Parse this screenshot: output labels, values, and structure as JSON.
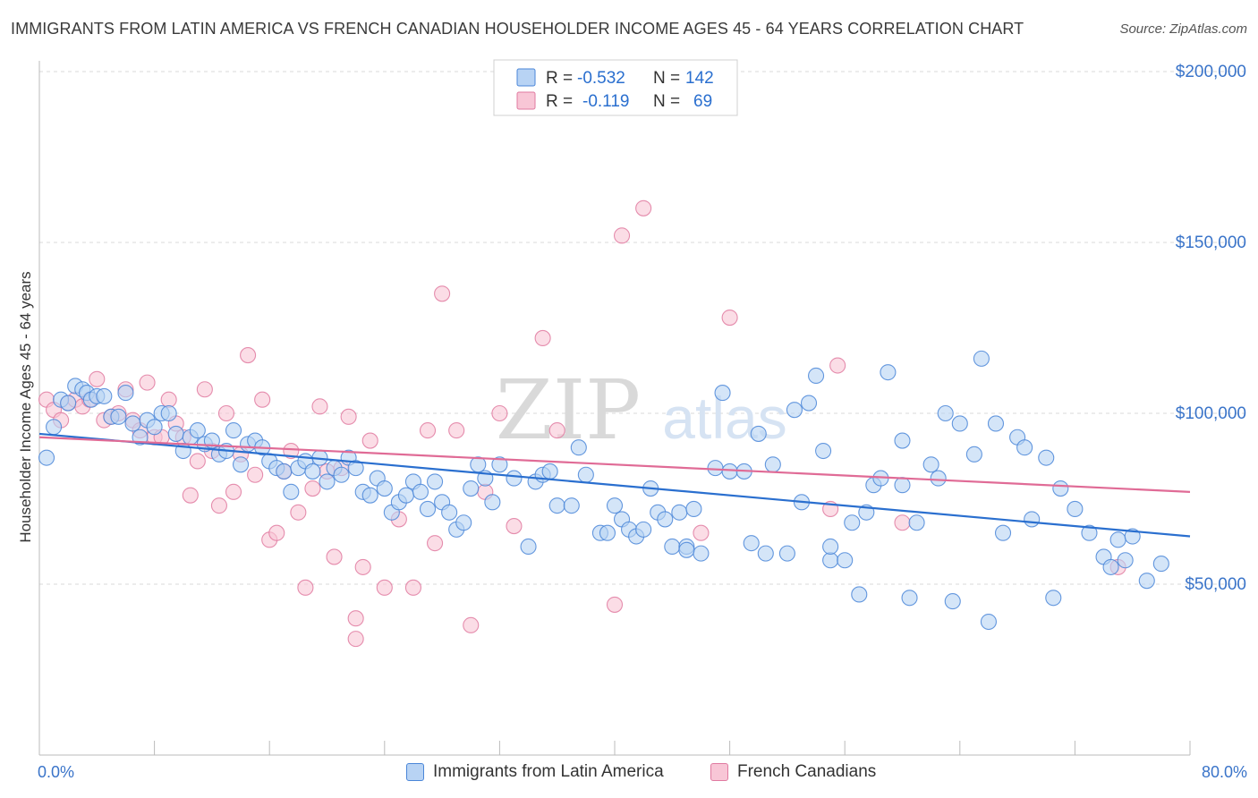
{
  "title": "IMMIGRANTS FROM LATIN AMERICA VS FRENCH CANADIAN HOUSEHOLDER INCOME AGES 45 - 64 YEARS CORRELATION CHART",
  "source": "Source: ZipAtlas.com",
  "watermark": {
    "zip": "ZIP",
    "atlas": "atlas"
  },
  "colors": {
    "blue": "#4a86d8",
    "blue_fill": "#b8d3f4",
    "blue_line": "#2a6fcf",
    "pink": "#e07aa0",
    "pink_fill": "#f8c6d6",
    "pink_line": "#e06b96",
    "axis_text": "#3a74c9",
    "grid": "#d8d8d8"
  },
  "legend_top": {
    "rows": [
      {
        "r_label": "R =",
        "r_value": "-0.532",
        "n_label": "N =",
        "n_value": "142"
      },
      {
        "r_label": "R =",
        "r_value": "-0.119",
        "n_label": "N =",
        "n_value": "69"
      }
    ]
  },
  "legend_bottom": [
    "Immigrants from Latin America",
    "French Canadians"
  ],
  "chart_data": {
    "type": "scatter",
    "title": "IMMIGRANTS FROM LATIN AMERICA VS FRENCH CANADIAN HOUSEHOLDER INCOME AGES 45 - 64 YEARS CORRELATION CHART",
    "xlabel": "",
    "ylabel": "Householder Income Ages 45 - 64 years",
    "xlim": [
      0,
      80
    ],
    "ylim": [
      0,
      205000
    ],
    "x_tick_labels": [
      "0.0%",
      "80.0%"
    ],
    "y_ticks": [
      50000,
      100000,
      150000,
      200000
    ],
    "y_tick_labels": [
      "$50,000",
      "$100,000",
      "$150,000",
      "$200,000"
    ],
    "grid": true,
    "series": [
      {
        "name": "Immigrants from Latin America",
        "r": -0.532,
        "n": 142,
        "trend": [
          [
            0,
            94000
          ],
          [
            80,
            64000
          ]
        ],
        "points": [
          [
            0.5,
            87000
          ],
          [
            1,
            96000
          ],
          [
            1.5,
            104000
          ],
          [
            2,
            103000
          ],
          [
            2.5,
            108000
          ],
          [
            3,
            107000
          ],
          [
            3.3,
            106000
          ],
          [
            3.6,
            104000
          ],
          [
            4,
            105000
          ],
          [
            4.5,
            105000
          ],
          [
            5,
            99000
          ],
          [
            5.5,
            99000
          ],
          [
            6,
            106000
          ],
          [
            6.5,
            97000
          ],
          [
            7,
            93000
          ],
          [
            7.5,
            98000
          ],
          [
            8,
            96000
          ],
          [
            8.5,
            100000
          ],
          [
            9,
            100000
          ],
          [
            9.5,
            94000
          ],
          [
            10,
            89000
          ],
          [
            10.5,
            93000
          ],
          [
            11,
            95000
          ],
          [
            11.5,
            91000
          ],
          [
            12,
            92000
          ],
          [
            12.5,
            88000
          ],
          [
            13,
            89000
          ],
          [
            13.5,
            95000
          ],
          [
            14,
            85000
          ],
          [
            14.5,
            91000
          ],
          [
            15,
            92000
          ],
          [
            15.5,
            90000
          ],
          [
            16,
            86000
          ],
          [
            16.5,
            84000
          ],
          [
            17,
            83000
          ],
          [
            17.5,
            77000
          ],
          [
            18,
            84000
          ],
          [
            18.5,
            86000
          ],
          [
            19,
            83000
          ],
          [
            19.5,
            87000
          ],
          [
            20,
            80000
          ],
          [
            20.5,
            84000
          ],
          [
            21,
            82000
          ],
          [
            21.5,
            87000
          ],
          [
            22,
            84000
          ],
          [
            22.5,
            77000
          ],
          [
            23,
            76000
          ],
          [
            23.5,
            81000
          ],
          [
            24,
            78000
          ],
          [
            24.5,
            71000
          ],
          [
            25,
            74000
          ],
          [
            25.5,
            76000
          ],
          [
            26,
            80000
          ],
          [
            26.5,
            77000
          ],
          [
            27,
            72000
          ],
          [
            27.5,
            80000
          ],
          [
            28,
            74000
          ],
          [
            28.5,
            71000
          ],
          [
            29,
            66000
          ],
          [
            29.5,
            68000
          ],
          [
            30,
            78000
          ],
          [
            30.5,
            85000
          ],
          [
            31,
            81000
          ],
          [
            31.5,
            74000
          ],
          [
            32,
            85000
          ],
          [
            33,
            81000
          ],
          [
            34,
            61000
          ],
          [
            34.5,
            80000
          ],
          [
            35,
            82000
          ],
          [
            35.5,
            83000
          ],
          [
            36,
            73000
          ],
          [
            37,
            73000
          ],
          [
            37.5,
            90000
          ],
          [
            38,
            82000
          ],
          [
            39,
            65000
          ],
          [
            39.5,
            65000
          ],
          [
            40,
            73000
          ],
          [
            40.5,
            69000
          ],
          [
            41,
            66000
          ],
          [
            41.5,
            64000
          ],
          [
            42,
            66000
          ],
          [
            42.5,
            78000
          ],
          [
            43,
            71000
          ],
          [
            43.5,
            69000
          ],
          [
            44,
            61000
          ],
          [
            44.5,
            71000
          ],
          [
            45,
            61000
          ],
          [
            45.5,
            72000
          ],
          [
            46,
            59000
          ],
          [
            47,
            84000
          ],
          [
            47.5,
            106000
          ],
          [
            48,
            83000
          ],
          [
            49,
            83000
          ],
          [
            49.5,
            62000
          ],
          [
            50,
            94000
          ],
          [
            50.5,
            59000
          ],
          [
            51,
            85000
          ],
          [
            52,
            59000
          ],
          [
            52.5,
            101000
          ],
          [
            53,
            74000
          ],
          [
            53.5,
            103000
          ],
          [
            54,
            111000
          ],
          [
            54.5,
            89000
          ],
          [
            55,
            57000
          ],
          [
            56,
            57000
          ],
          [
            56.5,
            68000
          ],
          [
            57,
            47000
          ],
          [
            57.5,
            71000
          ],
          [
            58,
            79000
          ],
          [
            58.5,
            81000
          ],
          [
            59,
            112000
          ],
          [
            60,
            79000
          ],
          [
            60.5,
            46000
          ],
          [
            61,
            68000
          ],
          [
            62,
            85000
          ],
          [
            62.5,
            81000
          ],
          [
            63,
            100000
          ],
          [
            63.5,
            45000
          ],
          [
            64,
            97000
          ],
          [
            65,
            88000
          ],
          [
            65.5,
            116000
          ],
          [
            66,
            39000
          ],
          [
            66.5,
            97000
          ],
          [
            67,
            65000
          ],
          [
            68,
            93000
          ],
          [
            68.5,
            90000
          ],
          [
            69,
            69000
          ],
          [
            70,
            87000
          ],
          [
            70.5,
            46000
          ],
          [
            71,
            78000
          ],
          [
            72,
            72000
          ],
          [
            73,
            65000
          ],
          [
            74,
            58000
          ],
          [
            74.5,
            55000
          ],
          [
            75,
            63000
          ],
          [
            75.5,
            57000
          ],
          [
            76,
            64000
          ],
          [
            77,
            51000
          ],
          [
            78,
            56000
          ],
          [
            60,
            92000
          ],
          [
            45,
            60000
          ],
          [
            55,
            61000
          ]
        ]
      },
      {
        "name": "French Canadians",
        "r": -0.119,
        "n": 69,
        "trend": [
          [
            0,
            93000
          ],
          [
            80,
            77000
          ]
        ],
        "points": [
          [
            0.5,
            104000
          ],
          [
            1,
            101000
          ],
          [
            1.5,
            98000
          ],
          [
            2,
            103000
          ],
          [
            2.5,
            104000
          ],
          [
            3,
            102000
          ],
          [
            3.5,
            104000
          ],
          [
            4,
            110000
          ],
          [
            4.5,
            98000
          ],
          [
            5,
            99000
          ],
          [
            5.5,
            100000
          ],
          [
            6,
            107000
          ],
          [
            6.5,
            98000
          ],
          [
            7,
            95000
          ],
          [
            7.5,
            109000
          ],
          [
            8,
            93000
          ],
          [
            8.5,
            93000
          ],
          [
            9,
            104000
          ],
          [
            9.5,
            97000
          ],
          [
            10,
            93000
          ],
          [
            10.5,
            76000
          ],
          [
            11,
            86000
          ],
          [
            11.5,
            107000
          ],
          [
            12,
            89000
          ],
          [
            12.5,
            73000
          ],
          [
            13,
            100000
          ],
          [
            13.5,
            77000
          ],
          [
            14,
            88000
          ],
          [
            14.5,
            117000
          ],
          [
            15,
            82000
          ],
          [
            15.5,
            104000
          ],
          [
            16,
            63000
          ],
          [
            16.5,
            65000
          ],
          [
            17,
            83000
          ],
          [
            17.5,
            89000
          ],
          [
            18,
            71000
          ],
          [
            18.5,
            49000
          ],
          [
            19,
            78000
          ],
          [
            19.5,
            102000
          ],
          [
            20,
            83000
          ],
          [
            20.5,
            58000
          ],
          [
            21,
            84000
          ],
          [
            21.5,
            99000
          ],
          [
            22,
            40000
          ],
          [
            22.5,
            55000
          ],
          [
            23,
            92000
          ],
          [
            24,
            49000
          ],
          [
            25,
            69000
          ],
          [
            26,
            49000
          ],
          [
            27,
            95000
          ],
          [
            27.5,
            62000
          ],
          [
            28,
            135000
          ],
          [
            29,
            95000
          ],
          [
            30,
            38000
          ],
          [
            31,
            77000
          ],
          [
            32,
            100000
          ],
          [
            33,
            67000
          ],
          [
            35,
            122000
          ],
          [
            36,
            95000
          ],
          [
            40,
            44000
          ],
          [
            40.5,
            152000
          ],
          [
            42,
            160000
          ],
          [
            46,
            65000
          ],
          [
            48,
            128000
          ],
          [
            55,
            72000
          ],
          [
            55.5,
            114000
          ],
          [
            60,
            68000
          ],
          [
            75,
            55000
          ],
          [
            22,
            34000
          ]
        ]
      }
    ]
  }
}
